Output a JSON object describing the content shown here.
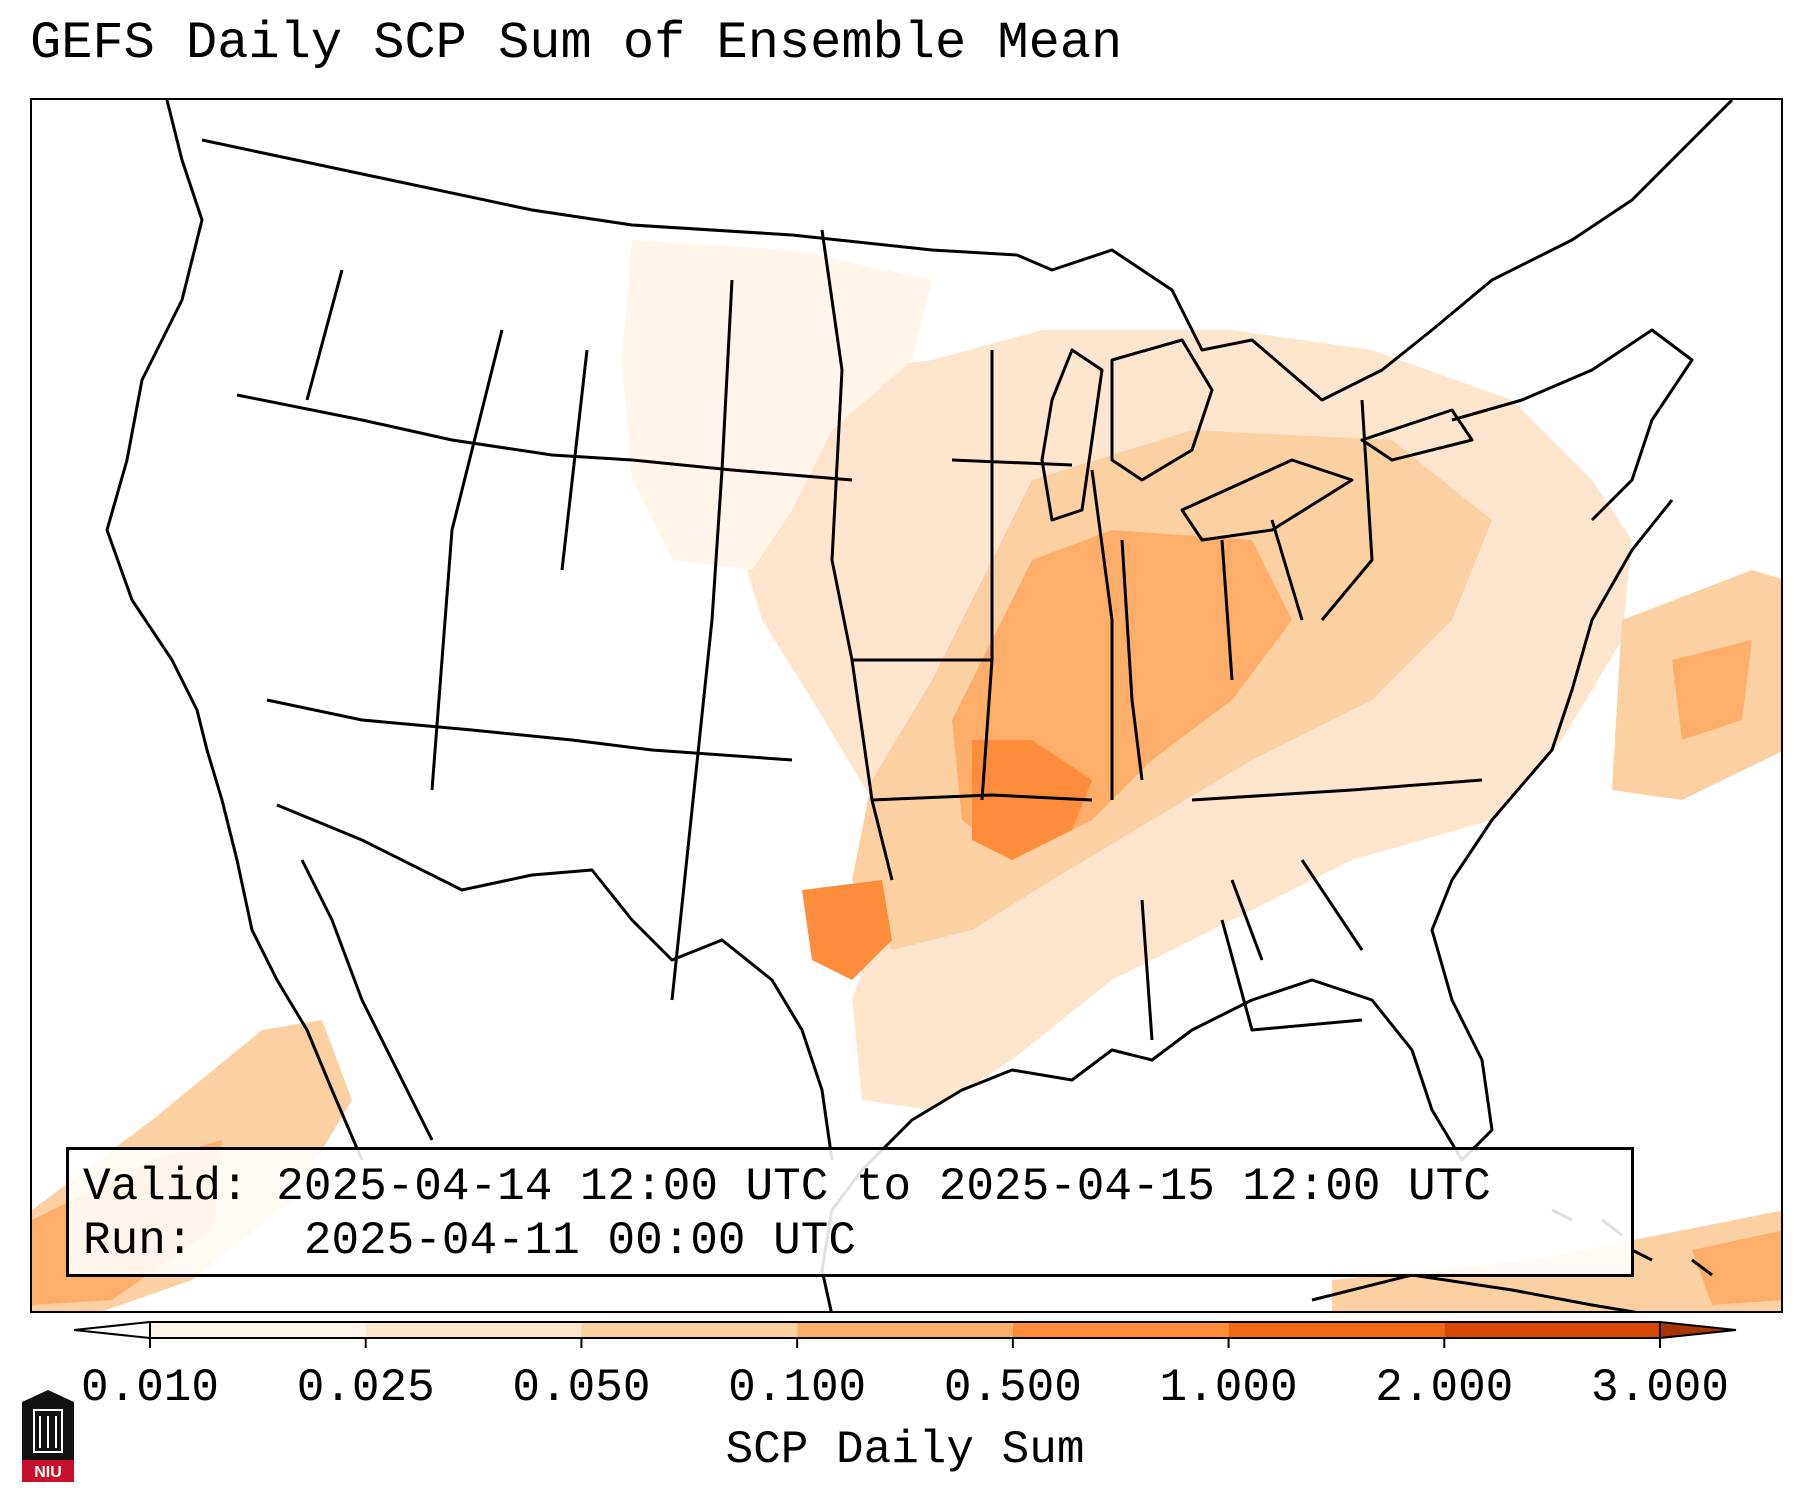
{
  "title": "GEFS Daily SCP Sum of Ensemble Mean",
  "info": {
    "valid_label": "Valid:",
    "valid_value": "2025-04-14 12:00 UTC to 2025-04-15 12:00 UTC",
    "run_label": "Run:",
    "run_value": "2025-04-11 00:00 UTC"
  },
  "colorbar": {
    "label": "SCP Daily Sum",
    "ticks": [
      "0.010",
      "0.025",
      "0.050",
      "0.100",
      "0.500",
      "1.000",
      "2.000",
      "3.000"
    ],
    "colors": [
      "#fff5eb",
      "#fee6ce",
      "#fdd0a2",
      "#fdae6b",
      "#fd8d3c",
      "#f16913",
      "#d94801",
      "#a63603"
    ],
    "extend": "both"
  },
  "logo": {
    "text": "NIU",
    "icon": "university-tower-icon"
  }
}
